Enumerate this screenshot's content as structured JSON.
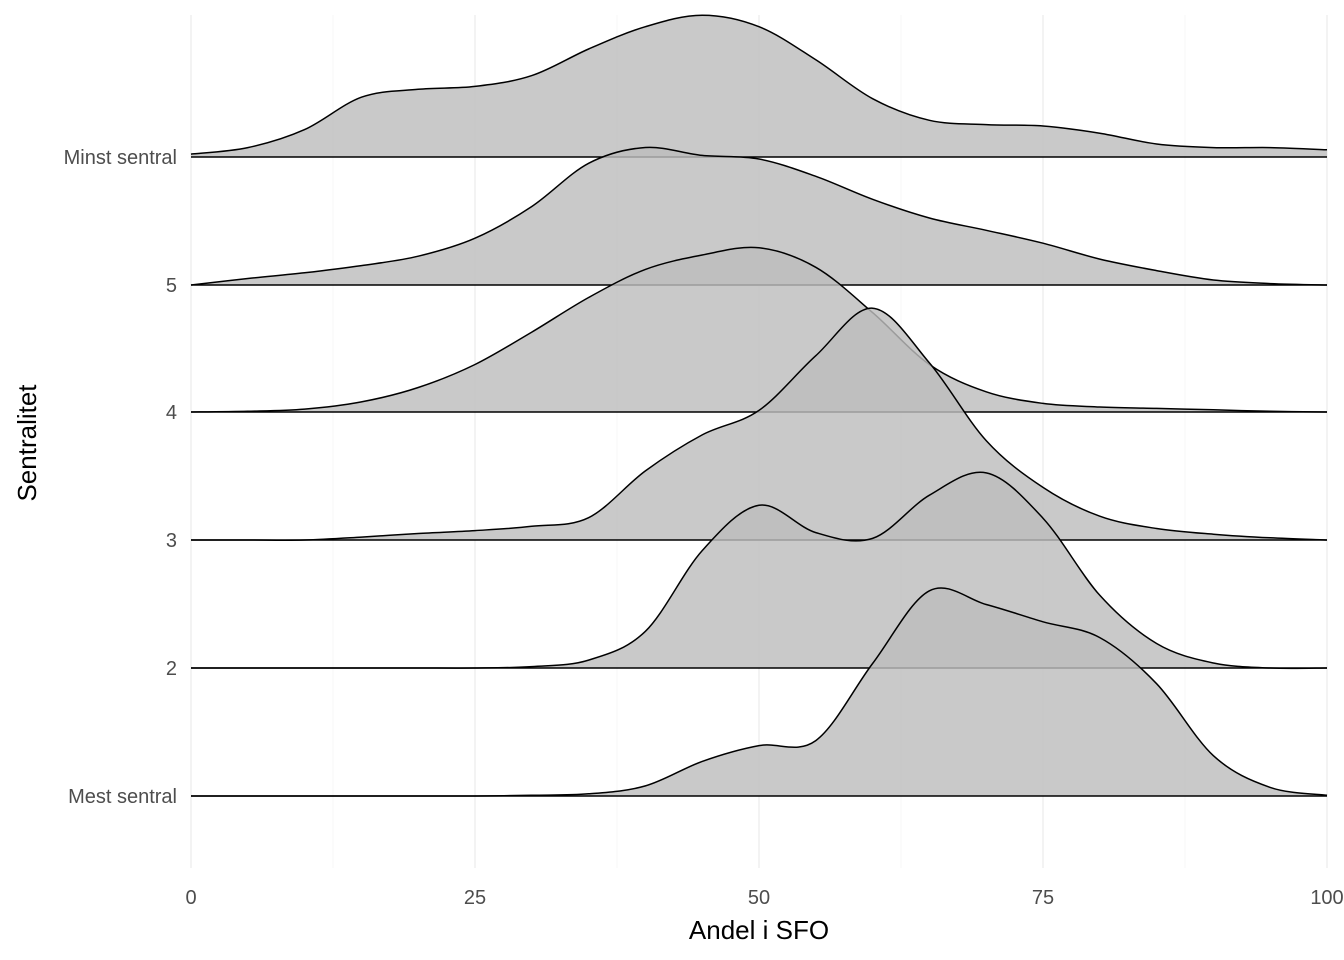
{
  "chart_data": {
    "type": "ridgeline",
    "title": "",
    "xlabel": "Andel i SFO",
    "ylabel": "Sentralitet",
    "xlim": [
      0,
      100
    ],
    "x_ticks": [
      0,
      25,
      50,
      75,
      100
    ],
    "x_tick_labels": [
      "0",
      "25",
      "50",
      "75",
      "100"
    ],
    "y_categories": [
      "Mest sentral",
      "2",
      "3",
      "4",
      "5",
      "Minst sentral"
    ],
    "grid": true,
    "fill_color": "#bdbdbd",
    "line_color": "#000000",
    "series": [
      {
        "name": "Minst sentral",
        "x": [
          0,
          5,
          10,
          15,
          20,
          25,
          30,
          35,
          40,
          45,
          50,
          55,
          60,
          65,
          70,
          75,
          80,
          85,
          90,
          95,
          100
        ],
        "y": [
          0.04,
          0.13,
          0.38,
          0.83,
          0.94,
          0.98,
          1.13,
          1.5,
          1.81,
          1.97,
          1.81,
          1.35,
          0.81,
          0.51,
          0.45,
          0.43,
          0.33,
          0.18,
          0.13,
          0.13,
          0.1
        ]
      },
      {
        "name": "5",
        "x": [
          0,
          5,
          10,
          15,
          20,
          25,
          30,
          35,
          40,
          45,
          50,
          55,
          60,
          65,
          70,
          75,
          80,
          85,
          90,
          95,
          100
        ],
        "y": [
          0.0,
          0.09,
          0.17,
          0.27,
          0.4,
          0.65,
          1.09,
          1.69,
          1.91,
          1.8,
          1.75,
          1.51,
          1.19,
          0.93,
          0.76,
          0.58,
          0.36,
          0.2,
          0.07,
          0.02,
          0.0
        ]
      },
      {
        "name": "4",
        "x": [
          0,
          5,
          10,
          15,
          20,
          25,
          30,
          35,
          40,
          45,
          50,
          55,
          60,
          65,
          70,
          75,
          80,
          85,
          90,
          95,
          100
        ],
        "y": [
          0.0,
          0.01,
          0.04,
          0.14,
          0.34,
          0.66,
          1.11,
          1.59,
          1.98,
          2.18,
          2.28,
          2.01,
          1.38,
          0.66,
          0.28,
          0.12,
          0.07,
          0.05,
          0.03,
          0.01,
          0.0
        ]
      },
      {
        "name": "3",
        "x": [
          0,
          5,
          10,
          15,
          20,
          25,
          30,
          35,
          40,
          45,
          50,
          55,
          60,
          65,
          70,
          75,
          80,
          85,
          90,
          95,
          100
        ],
        "y": [
          0.0,
          0.0,
          0.0,
          0.04,
          0.09,
          0.13,
          0.19,
          0.31,
          0.96,
          1.46,
          1.8,
          2.56,
          3.22,
          2.46,
          1.38,
          0.73,
          0.33,
          0.16,
          0.08,
          0.03,
          0.0
        ]
      },
      {
        "name": "2",
        "x": [
          0,
          5,
          10,
          15,
          20,
          25,
          30,
          35,
          40,
          45,
          50,
          55,
          60,
          65,
          70,
          75,
          80,
          85,
          90,
          95,
          100
        ],
        "y": [
          0.0,
          0.0,
          0.0,
          0.0,
          0.0,
          0.0,
          0.02,
          0.11,
          0.51,
          1.63,
          2.26,
          1.88,
          1.8,
          2.4,
          2.71,
          2.08,
          1.01,
          0.34,
          0.07,
          0.0,
          0.0
        ]
      },
      {
        "name": "Mest sentral",
        "x": [
          0,
          5,
          10,
          15,
          20,
          25,
          30,
          35,
          40,
          45,
          50,
          55,
          60,
          65,
          70,
          75,
          80,
          85,
          90,
          95,
          100
        ],
        "y": [
          0.0,
          0.0,
          0.0,
          0.0,
          0.0,
          0.0,
          0.01,
          0.03,
          0.14,
          0.48,
          0.7,
          0.77,
          1.84,
          2.85,
          2.66,
          2.42,
          2.2,
          1.56,
          0.56,
          0.12,
          0.01
        ]
      }
    ]
  }
}
